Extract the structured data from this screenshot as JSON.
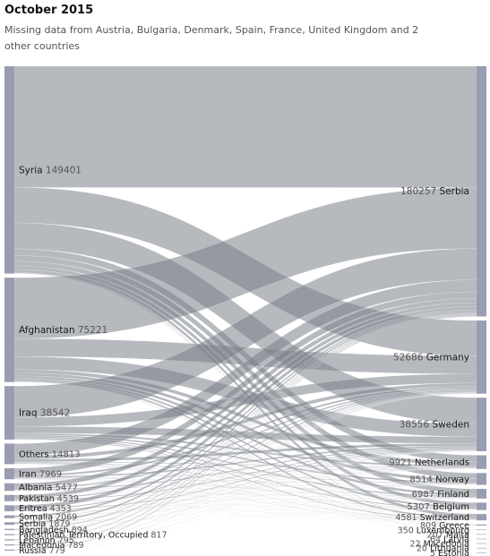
{
  "chart_data": {
    "type": "sankey",
    "title": "October 2015",
    "subtitle": "Missing data from Austria, Bulgaria, Denmark, Spain, France, United Kingdom and 2 other countries",
    "colors": {
      "link": "#7a8088",
      "node": "#9a9cb1",
      "background": "#ffffff"
    },
    "sources": [
      {
        "name": "Syria",
        "value": 149401
      },
      {
        "name": "Afghanistan",
        "value": 75221
      },
      {
        "name": "Iraq",
        "value": 38542
      },
      {
        "name": "Others",
        "value": 14813
      },
      {
        "name": "Iran",
        "value": 7969
      },
      {
        "name": "Albania",
        "value": 5477
      },
      {
        "name": "Pakistan",
        "value": 4539
      },
      {
        "name": "Eritrea",
        "value": 4353
      },
      {
        "name": "Somalia",
        "value": 2069
      },
      {
        "name": "Serbia",
        "value": 1879
      },
      {
        "name": "Bangladesh",
        "value": 894
      },
      {
        "name": "Palestinian Territory, Occupied",
        "value": 817
      },
      {
        "name": "Lebanon",
        "value": 795
      },
      {
        "name": "Macedonia",
        "value": 789
      },
      {
        "name": "Russia",
        "value": 779
      }
    ],
    "targets": [
      {
        "name": "Serbia",
        "value": 180257
      },
      {
        "name": "Germany",
        "value": 52686
      },
      {
        "name": "Sweden",
        "value": 38556
      },
      {
        "name": "Netherlands",
        "value": 9921
      },
      {
        "name": "Norway",
        "value": 8514
      },
      {
        "name": "Finland",
        "value": 6987
      },
      {
        "name": "Belgium",
        "value": 5307
      },
      {
        "name": "Switzerland",
        "value": 4581
      },
      {
        "name": "Greece",
        "value": 809
      },
      {
        "name": "Luxembourg",
        "value": 350
      },
      {
        "name": "Malta",
        "value": 207
      },
      {
        "name": "Latvia",
        "value": 64
      },
      {
        "name": "Macedonia",
        "value": 22
      },
      {
        "name": "Lithuania",
        "value": 20
      },
      {
        "name": "Estonia",
        "value": 5
      }
    ]
  }
}
